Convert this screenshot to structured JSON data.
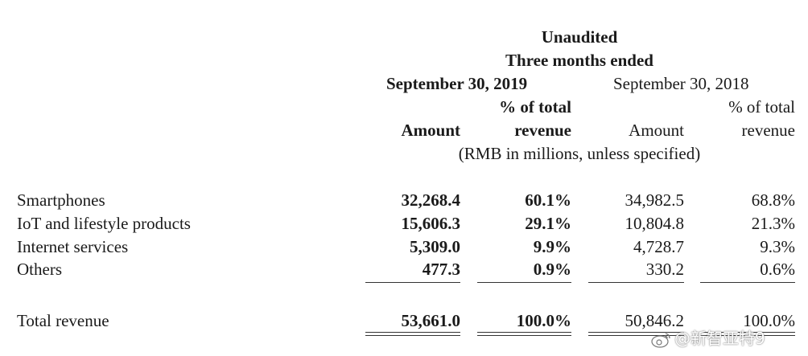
{
  "header": {
    "unaudited": "Unaudited",
    "period": "Three months ended",
    "date_2019": "September 30, 2019",
    "date_2018": "September 30, 2018",
    "pct_line1": "% of total",
    "pct_line2": "revenue",
    "amount": "Amount",
    "units": "(RMB in millions, unless specified)"
  },
  "rows": [
    {
      "label": "Smartphones",
      "amt_2019": "32,268.4",
      "pct_2019": "60.1%",
      "amt_2018": "34,982.5",
      "pct_2018": "68.8%"
    },
    {
      "label": "IoT and lifestyle products",
      "amt_2019": "15,606.3",
      "pct_2019": "29.1%",
      "amt_2018": "10,804.8",
      "pct_2018": "21.3%"
    },
    {
      "label": "Internet services",
      "amt_2019": "5,309.0",
      "pct_2019": "9.9%",
      "amt_2018": "4,728.7",
      "pct_2018": "9.3%"
    },
    {
      "label": "Others",
      "amt_2019": "477.3",
      "pct_2019": "0.9%",
      "amt_2018": "330.2",
      "pct_2018": "0.6%"
    }
  ],
  "total": {
    "label": "Total revenue",
    "amt_2019": "53,661.0",
    "pct_2019": "100.0%",
    "amt_2018": "50,846.2",
    "pct_2018": "100.0%"
  },
  "watermark": {
    "text": "@新智亚特9",
    "icon": "weibo-logo-icon"
  }
}
